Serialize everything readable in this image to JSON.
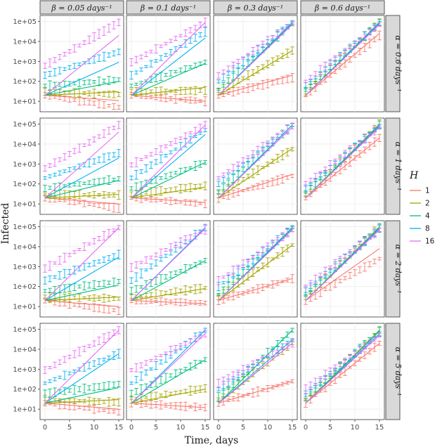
{
  "chart_data": {
    "type": "line",
    "xlabel": "Time, days",
    "ylabel": "Infected",
    "xlim": [
      -1,
      16
    ],
    "ylim": [
      3,
      200000
    ],
    "yscale": "log",
    "x_ticks": [
      0,
      5,
      10,
      15
    ],
    "x_tick_labels": [
      "0",
      "5",
      "10",
      "15"
    ],
    "y_ticks": [
      10,
      100,
      1000,
      10000,
      100000
    ],
    "y_tick_labels": [
      "1e+01",
      "1e+02",
      "1e+03",
      "1e+04",
      "1e+05"
    ],
    "grid": true,
    "legend": {
      "title": "H",
      "position": "right",
      "entries": [
        {
          "label": "1",
          "color": "#F8766D"
        },
        {
          "label": "2",
          "color": "#A3A500"
        },
        {
          "label": "4",
          "color": "#00BF7D"
        },
        {
          "label": "8",
          "color": "#00B0F6"
        },
        {
          "label": "16",
          "color": "#E76BF3"
        }
      ]
    },
    "column_facets": [
      {
        "label": "β = 0.05 days⁻¹",
        "beta": 0.05
      },
      {
        "label": "β = 0.1 days⁻¹",
        "beta": 0.1
      },
      {
        "label": "β = 0.3 days⁻¹",
        "beta": 0.3
      },
      {
        "label": "β = 0.6 days⁻¹",
        "beta": 0.6
      }
    ],
    "row_facets": [
      {
        "label": "α = 0.6 days⁻¹",
        "alpha": 0.6
      },
      {
        "label": "α = 1 days⁻¹",
        "alpha": 1
      },
      {
        "label": "α = 2 days⁻¹",
        "alpha": 2
      },
      {
        "label": "α = 5 days⁻¹",
        "alpha": 5
      }
    ],
    "time_points": [
      0,
      1,
      2,
      3,
      4,
      5,
      6,
      7,
      8,
      9,
      10,
      11,
      12,
      13,
      14,
      15
    ],
    "panels": [
      {
        "row": 0,
        "col": 0,
        "series": [
          {
            "H": 1,
            "line_start": 20,
            "line_end": 11,
            "obs_start": 20,
            "obs_end": 5
          },
          {
            "H": 2,
            "line_start": 20,
            "line_end": 30,
            "obs_start": 30,
            "obs_end": 22
          },
          {
            "H": 4,
            "line_start": 20,
            "line_end": 100,
            "obs_start": 60,
            "obs_end": 120
          },
          {
            "H": 8,
            "line_start": 20,
            "line_end": 900,
            "obs_start": 200,
            "obs_end": 3000
          },
          {
            "H": 16,
            "line_start": 20,
            "line_end": 20000,
            "obs_start": 600,
            "obs_end": 90000
          }
        ]
      },
      {
        "row": 0,
        "col": 1,
        "series": [
          {
            "H": 1,
            "line_start": 20,
            "line_end": 10,
            "obs_start": 20,
            "obs_end": 10
          },
          {
            "H": 2,
            "line_start": 20,
            "line_end": 50,
            "obs_start": 30,
            "obs_end": 35
          },
          {
            "H": 4,
            "line_start": 20,
            "line_end": 800,
            "obs_start": 60,
            "obs_end": 900
          },
          {
            "H": 8,
            "line_start": 20,
            "line_end": 15000,
            "obs_start": 200,
            "obs_end": 30000
          },
          {
            "H": 16,
            "line_start": 20,
            "line_end": 90000,
            "obs_start": 900,
            "obs_end": 90000
          }
        ]
      },
      {
        "row": 0,
        "col": 2,
        "series": [
          {
            "H": 1,
            "line_start": 20,
            "line_end": 200,
            "obs_start": 20,
            "obs_end": 150
          },
          {
            "H": 2,
            "line_start": 20,
            "line_end": 3500,
            "obs_start": 30,
            "obs_end": 3500
          },
          {
            "H": 4,
            "line_start": 20,
            "line_end": 80000,
            "obs_start": 40,
            "obs_end": 80000
          },
          {
            "H": 8,
            "line_start": 20,
            "line_end": 90000,
            "obs_start": 100,
            "obs_end": 90000
          },
          {
            "H": 16,
            "line_start": 20,
            "line_end": 70000,
            "obs_start": 200,
            "obs_end": 80000
          }
        ]
      },
      {
        "row": 0,
        "col": 3,
        "series": [
          {
            "H": 1,
            "line_start": 20,
            "line_end": 25000,
            "obs_start": 20,
            "obs_end": 20000
          },
          {
            "H": 2,
            "line_start": 20,
            "line_end": 90000,
            "obs_start": 30,
            "obs_end": 90000
          },
          {
            "H": 4,
            "line_start": 20,
            "line_end": 90000,
            "obs_start": 40,
            "obs_end": 90000
          },
          {
            "H": 8,
            "line_start": 20,
            "line_end": 80000,
            "obs_start": 60,
            "obs_end": 80000
          },
          {
            "H": 16,
            "line_start": 20,
            "line_end": 70000,
            "obs_start": 100,
            "obs_end": 70000
          }
        ]
      },
      {
        "row": 1,
        "col": 0,
        "series": [
          {
            "H": 1,
            "line_start": 20,
            "line_end": 10,
            "obs_start": 20,
            "obs_end": 6
          },
          {
            "H": 2,
            "line_start": 20,
            "line_end": 30,
            "obs_start": 30,
            "obs_end": 28
          },
          {
            "H": 4,
            "line_start": 20,
            "line_end": 150,
            "obs_start": 60,
            "obs_end": 180
          },
          {
            "H": 8,
            "line_start": 20,
            "line_end": 2000,
            "obs_start": 200,
            "obs_end": 3500
          },
          {
            "H": 16,
            "line_start": 20,
            "line_end": 40000,
            "obs_start": 600,
            "obs_end": 90000
          }
        ]
      },
      {
        "row": 1,
        "col": 1,
        "series": [
          {
            "H": 1,
            "line_start": 20,
            "line_end": 12,
            "obs_start": 20,
            "obs_end": 10
          },
          {
            "H": 2,
            "line_start": 20,
            "line_end": 70,
            "obs_start": 30,
            "obs_end": 80
          },
          {
            "H": 4,
            "line_start": 20,
            "line_end": 1200,
            "obs_start": 60,
            "obs_end": 1200
          },
          {
            "H": 8,
            "line_start": 20,
            "line_end": 30000,
            "obs_start": 200,
            "obs_end": 50000
          },
          {
            "H": 16,
            "line_start": 20,
            "line_end": 90000,
            "obs_start": 900,
            "obs_end": 90000
          }
        ]
      },
      {
        "row": 1,
        "col": 2,
        "series": [
          {
            "H": 1,
            "line_start": 20,
            "line_end": 300,
            "obs_start": 20,
            "obs_end": 250
          },
          {
            "H": 2,
            "line_start": 20,
            "line_end": 6000,
            "obs_start": 30,
            "obs_end": 5500
          },
          {
            "H": 4,
            "line_start": 20,
            "line_end": 90000,
            "obs_start": 40,
            "obs_end": 90000
          },
          {
            "H": 8,
            "line_start": 20,
            "line_end": 90000,
            "obs_start": 100,
            "obs_end": 90000
          },
          {
            "H": 16,
            "line_start": 20,
            "line_end": 70000,
            "obs_start": 200,
            "obs_end": 80000
          }
        ]
      },
      {
        "row": 1,
        "col": 3,
        "series": [
          {
            "H": 1,
            "line_start": 20,
            "line_end": 20000,
            "obs_start": 20,
            "obs_end": 20000
          },
          {
            "H": 2,
            "line_start": 20,
            "line_end": 100000,
            "obs_start": 30,
            "obs_end": 100000
          },
          {
            "H": 4,
            "line_start": 20,
            "line_end": 90000,
            "obs_start": 40,
            "obs_end": 90000
          },
          {
            "H": 8,
            "line_start": 20,
            "line_end": 80000,
            "obs_start": 60,
            "obs_end": 80000
          },
          {
            "H": 16,
            "line_start": 20,
            "line_end": 70000,
            "obs_start": 100,
            "obs_end": 70000
          }
        ]
      },
      {
        "row": 2,
        "col": 0,
        "series": [
          {
            "H": 1,
            "line_start": 20,
            "line_end": 10,
            "obs_start": 20,
            "obs_end": 6
          },
          {
            "H": 2,
            "line_start": 20,
            "line_end": 30,
            "obs_start": 30,
            "obs_end": 25
          },
          {
            "H": 4,
            "line_start": 20,
            "line_end": 120,
            "obs_start": 60,
            "obs_end": 180
          },
          {
            "H": 8,
            "line_start": 20,
            "line_end": 3000,
            "obs_start": 200,
            "obs_end": 4000
          },
          {
            "H": 16,
            "line_start": 20,
            "line_end": 90000,
            "obs_start": 800,
            "obs_end": 90000
          }
        ]
      },
      {
        "row": 2,
        "col": 1,
        "series": [
          {
            "H": 1,
            "line_start": 20,
            "line_end": 14,
            "obs_start": 20,
            "obs_end": 15
          },
          {
            "H": 2,
            "line_start": 20,
            "line_end": 80,
            "obs_start": 30,
            "obs_end": 85
          },
          {
            "H": 4,
            "line_start": 20,
            "line_end": 2000,
            "obs_start": 60,
            "obs_end": 2000
          },
          {
            "H": 8,
            "line_start": 20,
            "line_end": 90000,
            "obs_start": 200,
            "obs_end": 90000
          },
          {
            "H": 16,
            "line_start": 20,
            "line_end": 80000,
            "obs_start": 900,
            "obs_end": 70000
          }
        ]
      },
      {
        "row": 2,
        "col": 2,
        "series": [
          {
            "H": 1,
            "line_start": 20,
            "line_end": 250,
            "obs_start": 20,
            "obs_end": 250
          },
          {
            "H": 2,
            "line_start": 20,
            "line_end": 12000,
            "obs_start": 30,
            "obs_end": 12000
          },
          {
            "H": 4,
            "line_start": 20,
            "line_end": 90000,
            "obs_start": 40,
            "obs_end": 90000
          },
          {
            "H": 8,
            "line_start": 20,
            "line_end": 80000,
            "obs_start": 100,
            "obs_end": 80000
          },
          {
            "H": 16,
            "line_start": 20,
            "line_end": 70000,
            "obs_start": 200,
            "obs_end": 70000
          }
        ]
      },
      {
        "row": 2,
        "col": 3,
        "series": [
          {
            "H": 1,
            "line_start": 20,
            "line_end": 8000,
            "obs_start": 20,
            "obs_end": 2500
          },
          {
            "H": 2,
            "line_start": 20,
            "line_end": 100000,
            "obs_start": 30,
            "obs_end": 100000
          },
          {
            "H": 4,
            "line_start": 20,
            "line_end": 90000,
            "obs_start": 40,
            "obs_end": 90000
          },
          {
            "H": 8,
            "line_start": 20,
            "line_end": 80000,
            "obs_start": 60,
            "obs_end": 80000
          },
          {
            "H": 16,
            "line_start": 20,
            "line_end": 70000,
            "obs_start": 100,
            "obs_end": 70000
          }
        ]
      },
      {
        "row": 3,
        "col": 0,
        "series": [
          {
            "H": 1,
            "line_start": 20,
            "line_end": 10,
            "obs_start": 20,
            "obs_end": 7
          },
          {
            "H": 2,
            "line_start": 20,
            "line_end": 30,
            "obs_start": 30,
            "obs_end": 22
          },
          {
            "H": 4,
            "line_start": 20,
            "line_end": 120,
            "obs_start": 60,
            "obs_end": 180
          },
          {
            "H": 8,
            "line_start": 20,
            "line_end": 6000,
            "obs_start": 200,
            "obs_end": 6000
          },
          {
            "H": 16,
            "line_start": 20,
            "line_end": 90000,
            "obs_start": 900,
            "obs_end": 90000
          }
        ]
      },
      {
        "row": 3,
        "col": 1,
        "series": [
          {
            "H": 1,
            "line_start": 20,
            "line_end": 12,
            "obs_start": 20,
            "obs_end": 12
          },
          {
            "H": 2,
            "line_start": 20,
            "line_end": 100,
            "obs_start": 30,
            "obs_end": 110
          },
          {
            "H": 4,
            "line_start": 20,
            "line_end": 3000,
            "obs_start": 60,
            "obs_end": 3000
          },
          {
            "H": 8,
            "line_start": 20,
            "line_end": 90000,
            "obs_start": 200,
            "obs_end": 90000
          },
          {
            "H": 16,
            "line_start": 20,
            "line_end": 60000,
            "obs_start": 900,
            "obs_end": 60000
          }
        ]
      },
      {
        "row": 3,
        "col": 2,
        "series": [
          {
            "H": 1,
            "line_start": 20,
            "line_end": 250,
            "obs_start": 20,
            "obs_end": 250
          },
          {
            "H": 2,
            "line_start": 20,
            "line_end": 20000,
            "obs_start": 30,
            "obs_end": 20000
          },
          {
            "H": 4,
            "line_start": 20,
            "line_end": 90000,
            "obs_start": 40,
            "obs_end": 90000
          },
          {
            "H": 8,
            "line_start": 20,
            "line_end": 30000,
            "obs_start": 100,
            "obs_end": 30000
          },
          {
            "H": 16,
            "line_start": 20,
            "line_end": 20000,
            "obs_start": 200,
            "obs_end": 20000
          }
        ]
      },
      {
        "row": 3,
        "col": 3,
        "series": [
          {
            "H": 1,
            "line_start": 20,
            "line_end": 20000,
            "obs_start": 20,
            "obs_end": 20000
          },
          {
            "H": 2,
            "line_start": 20,
            "line_end": 90000,
            "obs_start": 30,
            "obs_end": 90000
          },
          {
            "H": 4,
            "line_start": 20,
            "line_end": 80000,
            "obs_start": 40,
            "obs_end": 80000
          },
          {
            "H": 8,
            "line_start": 20,
            "line_end": 60000,
            "obs_start": 60,
            "obs_end": 60000
          },
          {
            "H": 16,
            "line_start": 20,
            "line_end": 50000,
            "obs_start": 100,
            "obs_end": 50000
          }
        ]
      }
    ]
  }
}
